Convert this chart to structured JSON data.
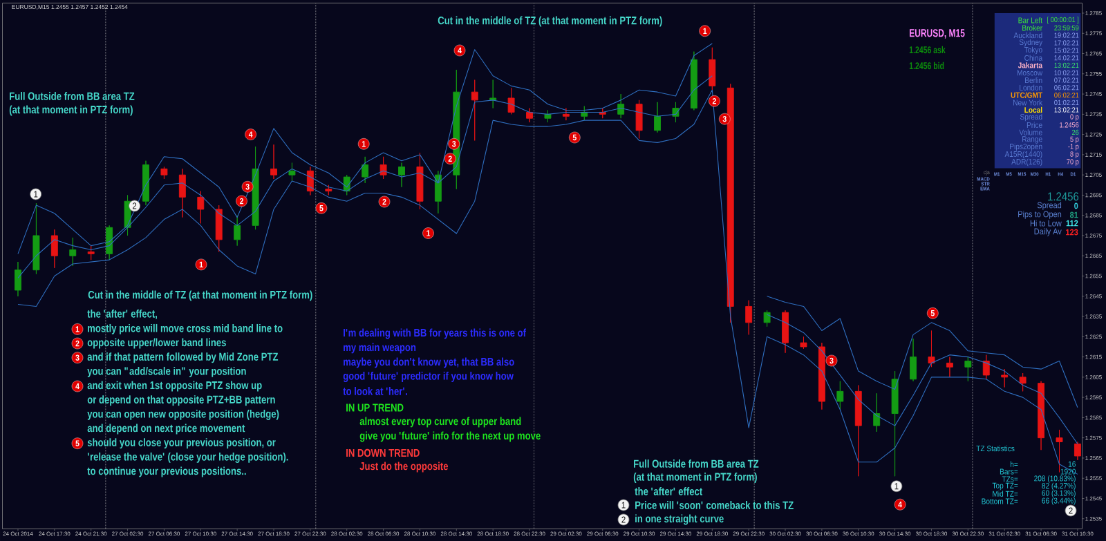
{
  "chart_data": {
    "type": "candlestick",
    "title": "EURUSD,M15 1.2455 1.2457 1.2452 1.2454",
    "categories": [
      "24 Oct 2014",
      null,
      "24 Oct 17:30",
      null,
      "24 Oct 21:30",
      null,
      "27 Oct 02:30",
      null,
      "27 Oct 06:30",
      null,
      "27 Oct 10:30",
      null,
      "27 Oct 14:30",
      null,
      "27 Oct 18:30",
      null,
      "27 Oct 22:30",
      null,
      "28 Oct 02:30",
      null,
      "28 Oct 06:30",
      null,
      "28 Oct 10:30",
      null,
      "28 Oct 14:30",
      null,
      "28 Oct 18:30",
      null,
      "28 Oct 22:30",
      null,
      "29 Oct 02:30",
      null,
      "29 Oct 06:30",
      null,
      "29 Oct 10:30",
      null,
      "29 Oct 14:30",
      null,
      "29 Oct 18:30",
      null,
      "29 Oct 22:30",
      null,
      "30 Oct 02:30",
      null,
      "30 Oct 06:30",
      null,
      "30 Oct 10:30",
      null,
      "30 Oct 14:30",
      null,
      "30 Oct 18:30",
      null,
      "30 Oct 22:30",
      null,
      "31 Oct 02:30",
      null,
      "31 Oct 06:30",
      null,
      "31 Oct 10:30"
    ],
    "ylim": [
      1.253,
      1.279
    ],
    "yticks": [
      1.2535,
      1.2545,
      1.2555,
      1.2565,
      1.2575,
      1.2585,
      1.2595,
      1.2605,
      1.2615,
      1.2625,
      1.2635,
      1.2645,
      1.2655,
      1.2665,
      1.2675,
      1.2685,
      1.2695,
      1.2705,
      1.2715,
      1.2725,
      1.2735,
      1.2745,
      1.2755,
      1.2765,
      1.2775,
      1.2785
    ],
    "ohlc": [
      [
        1.2648,
        1.2662,
        1.2645,
        1.2658
      ],
      [
        1.2658,
        1.2691,
        1.2656,
        1.2675
      ],
      [
        1.2675,
        1.2678,
        1.2659,
        1.2665
      ],
      [
        1.2665,
        1.2674,
        1.266,
        1.2668
      ],
      [
        1.2667,
        1.267,
        1.2663,
        1.2666
      ],
      [
        1.2666,
        1.268,
        1.2663,
        1.2679
      ],
      [
        1.2679,
        1.2695,
        1.2675,
        1.2692
      ],
      [
        1.2692,
        1.2712,
        1.269,
        1.271
      ],
      [
        1.2708,
        1.2709,
        1.2703,
        1.2705
      ],
      [
        1.2705,
        1.2708,
        1.2684,
        1.2694
      ],
      [
        1.2694,
        1.2697,
        1.2681,
        1.2688
      ],
      [
        1.2688,
        1.269,
        1.2667,
        1.2673
      ],
      [
        1.2673,
        1.2685,
        1.267,
        1.268
      ],
      [
        1.268,
        1.2719,
        1.2678,
        1.2708
      ],
      [
        1.2708,
        1.272,
        1.2703,
        1.2705
      ],
      [
        1.2705,
        1.2711,
        1.2702,
        1.2707
      ],
      [
        1.2707,
        1.2709,
        1.2695,
        1.2697
      ],
      [
        1.2698,
        1.27,
        1.2695,
        1.2697
      ],
      [
        1.2697,
        1.2705,
        1.2695,
        1.2704
      ],
      [
        1.2704,
        1.2714,
        1.2701,
        1.271
      ],
      [
        1.271,
        1.2714,
        1.2703,
        1.2705
      ],
      [
        1.2705,
        1.2711,
        1.2699,
        1.2709
      ],
      [
        1.2709,
        1.2716,
        1.2688,
        1.2692
      ],
      [
        1.2692,
        1.2707,
        1.2686,
        1.2705
      ],
      [
        1.2705,
        1.2757,
        1.2698,
        1.2746
      ],
      [
        1.2746,
        1.2752,
        1.2722,
        1.2742
      ],
      [
        1.2742,
        1.2752,
        1.2738,
        1.2743
      ],
      [
        1.2743,
        1.2748,
        1.2735,
        1.2736
      ],
      [
        1.2736,
        1.2738,
        1.2731,
        1.2733
      ],
      [
        1.2733,
        1.2737,
        1.2731,
        1.2735
      ],
      [
        1.2735,
        1.2738,
        1.2732,
        1.2734
      ],
      [
        1.2734,
        1.2739,
        1.2732,
        1.2736
      ],
      [
        1.2736,
        1.2738,
        1.2733,
        1.2735
      ],
      [
        1.2735,
        1.2745,
        1.2733,
        1.274
      ],
      [
        1.274,
        1.2742,
        1.2723,
        1.2727
      ],
      [
        1.2727,
        1.2741,
        1.2726,
        1.2734
      ],
      [
        1.2734,
        1.2741,
        1.2731,
        1.2738
      ],
      [
        1.2738,
        1.2766,
        1.2737,
        1.2762
      ],
      [
        1.2762,
        1.2768,
        1.2747,
        1.2749
      ],
      [
        1.2748,
        1.275,
        1.2632,
        1.264
      ],
      [
        1.264,
        1.2643,
        1.2626,
        1.2632
      ],
      [
        1.2632,
        1.2638,
        1.263,
        1.2637
      ],
      [
        1.2637,
        1.2638,
        1.2617,
        1.2622
      ],
      [
        1.2622,
        1.2625,
        1.2619,
        1.262
      ],
      [
        1.262,
        1.2622,
        1.2589,
        1.2593
      ],
      [
        1.2593,
        1.2603,
        1.2589,
        1.2598
      ],
      [
        1.2598,
        1.2601,
        1.2556,
        1.2581
      ],
      [
        1.2581,
        1.2597,
        1.2578,
        1.2587
      ],
      [
        1.2587,
        1.2608,
        1.2556,
        1.2604
      ],
      [
        1.2604,
        1.2624,
        1.2603,
        1.2615
      ],
      [
        1.2615,
        1.2628,
        1.261,
        1.2612
      ],
      [
        1.2612,
        1.2615,
        1.2605,
        1.261
      ],
      [
        1.261,
        1.2615,
        1.2603,
        1.2613
      ],
      [
        1.2613,
        1.2616,
        1.2604,
        1.2606
      ],
      [
        1.2606,
        1.2609,
        1.26,
        1.2605
      ],
      [
        1.2605,
        1.2607,
        1.2598,
        1.2602
      ],
      [
        1.2602,
        1.2603,
        1.2569,
        1.2575
      ],
      [
        1.2575,
        1.2579,
        1.2558,
        1.2573
      ],
      [
        1.2572,
        1.2573,
        1.2564,
        1.2566
      ]
    ],
    "colors": [
      "#149c14",
      "#149c14",
      "#e81414",
      "#149c14",
      "#e81414",
      "#149c14",
      "#149c14",
      "#149c14",
      "#e81414",
      "#e81414",
      "#e81414",
      "#e81414",
      "#149c14",
      "#149c14",
      "#e81414",
      "#149c14",
      "#e81414",
      "#e81414",
      "#149c14",
      "#149c14",
      "#e81414",
      "#149c14",
      "#e81414",
      "#149c14",
      "#149c14",
      "#e81414",
      "#149c14",
      "#e81414",
      "#e81414",
      "#149c14",
      "#e81414",
      "#149c14",
      "#e81414",
      "#149c14",
      "#e81414",
      "#149c14",
      "#149c14",
      "#149c14",
      "#e81414",
      "#e81414",
      "#e81414",
      "#149c14",
      "#e81414",
      "#e81414",
      "#e81414",
      "#149c14",
      "#e81414",
      "#149c14",
      "#149c14",
      "#149c14",
      "#e81414",
      "#e81414",
      "#149c14",
      "#e81414",
      "#e81414",
      "#e81414",
      "#e81414",
      "#e81414",
      "#e81414"
    ],
    "series": [
      {
        "type": "line",
        "color": "#2f6fc0",
        "values": [
          1.2666,
          1.269,
          1.2686,
          1.2678,
          1.267,
          1.2672,
          1.268,
          1.27,
          1.2714,
          1.2713,
          1.2706,
          1.2699,
          1.2684,
          1.2705,
          1.2728,
          1.2716,
          1.271,
          1.2706,
          1.2699,
          1.2711,
          1.2716,
          1.2712,
          1.2715,
          1.2701,
          1.2739,
          1.2767,
          1.2754,
          1.2749,
          1.2747,
          1.274,
          1.2737,
          1.2737,
          1.2738,
          1.2742,
          1.2747,
          1.2746,
          1.2744,
          1.2764,
          1.277,
          null,
          null,
          1.2645,
          1.2642,
          1.264,
          1.2628,
          1.2634,
          1.2608,
          1.2603,
          1.2599,
          1.2626,
          1.2632,
          1.2628,
          1.2618,
          1.2617,
          1.2616,
          1.261,
          1.2609,
          1.2613,
          1.259
        ]
      },
      {
        "type": "line",
        "color": "#2f6fc0",
        "values": [
          1.2654,
          1.2665,
          1.2673,
          1.267,
          1.2668,
          1.267,
          1.2679,
          1.2689,
          1.27,
          1.2701,
          1.2695,
          1.2686,
          1.268,
          1.2687,
          1.2702,
          1.2708,
          1.2704,
          1.2699,
          1.2697,
          1.2703,
          1.2707,
          1.2704,
          1.2706,
          1.2701,
          1.2709,
          1.2741,
          1.2742,
          1.274,
          1.2736,
          1.2735,
          1.2736,
          1.2736,
          1.2736,
          1.2738,
          1.2736,
          1.2734,
          1.2735,
          1.2747,
          1.2754,
          null,
          null,
          1.2636,
          1.2632,
          1.2627,
          1.2618,
          1.2606,
          1.2594,
          1.2586,
          1.2581,
          1.2596,
          1.2612,
          1.2616,
          1.2615,
          1.2612,
          1.2608,
          1.2601,
          1.2597,
          1.2585,
          1.2572
        ]
      },
      {
        "type": "line",
        "color": "#2f6fc0",
        "values": [
          1.2641,
          1.264,
          1.2655,
          1.2661,
          1.2662,
          1.2663,
          1.2668,
          1.2674,
          1.2683,
          1.2688,
          1.268,
          1.2668,
          1.266,
          1.2656,
          1.2688,
          1.2702,
          1.2699,
          1.2694,
          1.2692,
          1.2696,
          1.2696,
          1.2694,
          1.269,
          1.2683,
          1.2676,
          1.2692,
          1.2732,
          1.273,
          1.2729,
          1.2729,
          1.273,
          1.2732,
          1.2732,
          1.2732,
          1.2722,
          1.2721,
          1.2723,
          1.273,
          1.2747,
          1.2635,
          1.258,
          1.2625,
          1.2621,
          1.2616,
          1.2608,
          1.2589,
          1.2563,
          1.2563,
          1.257,
          1.2586,
          1.2605,
          1.2605,
          1.2605,
          1.2604,
          1.2598,
          1.2595,
          1.2589,
          1.2562,
          1.2557
        ]
      }
    ],
    "annotations": [
      "1",
      "2",
      "1",
      "2",
      "3",
      "4",
      "5",
      "1",
      "2",
      "1",
      "2",
      "3",
      "4",
      "5",
      "1",
      "2",
      "3",
      "3",
      "1",
      "4",
      "5",
      "2",
      "Full Outside from BB area TZ",
      "(at that moment in PTZ form)",
      "Cut in the middle of TZ (at that moment in PTZ form)",
      "Cut in the middle of TZ (at that moment in PTZ form)",
      "the 'after' effect,",
      "1",
      "mostly price will move cross mid band line to",
      "2",
      "opposite upper/lower band lines",
      "3",
      "and if that pattern followed by Mid Zone PTZ",
      "you can \"add/scale in\" your position",
      "4",
      "and exit when 1st opposite PTZ show up",
      "or depend on that opposite PTZ+BB pattern",
      "you can open new opposite position (hedge)",
      "and depend on next price movement",
      "5",
      "should you close your previous position, or",
      "'release the valve' (close your hedge position).",
      "to continue your previous positions..",
      "I'm dealing with BB for years this is one of",
      "my main weapon",
      "maybe you don't know yet, that BB also",
      "good 'future' predictor if you know how",
      "to look at 'her'.",
      "IN UP TREND",
      "almost every top curve of upper band",
      "give you 'future' info for the next up move",
      "IN DOWN TREND",
      "Just do the opposite",
      "Full Outside from BB area TZ",
      "(at that moment in PTZ form)",
      "the 'after' effect",
      "1",
      "Price will 'soon' comeback to this TZ",
      "2",
      "in one straight curve",
      "TZ Statistics",
      "h=",
      "16",
      "Bars=",
      "1920",
      "TZs=",
      "208 (10.83%)",
      "Top TZ=",
      "82 (4.27%)",
      "Mid TZ=",
      "60 (3.13%)",
      "Bottom TZ=",
      "66 (3.44%)",
      "EURUSD, M15",
      "1.2456 ask",
      "1.2456 bid",
      "Bar Left",
      "[ 00:00:01 ]",
      "Broker",
      "23:59:59",
      "Auckland",
      "19:02:21",
      "Sydney",
      "17:02:21",
      "Tokyo",
      "15:02:21",
      "China",
      "14:02:21",
      "Jakarta",
      "13:02:21",
      "Moscow",
      "10:02:21",
      "Berlin",
      "07:02:21",
      "London",
      "06:02:21",
      "UTC/GMT",
      "06:02:21",
      "New York",
      "01:02:21",
      "Local",
      "13:02:21",
      "Spread",
      "0 p",
      "Price",
      "1.2456",
      "Volume",
      "26",
      "Range",
      "5 p",
      "Pips2open",
      "-1 p",
      "A15R(1440)",
      "8 p",
      "ADR(126)",
      "70 p",
      "cja",
      "M1",
      "M5",
      "M15",
      "M30",
      "H1",
      "H4",
      "D1",
      "MACD",
      "STR",
      "EMA",
      "1.2456",
      "Spread",
      "0",
      "Pips to Open",
      "81",
      "Hi to Low",
      "112",
      "Daily Av",
      "123"
    ]
  }
}
